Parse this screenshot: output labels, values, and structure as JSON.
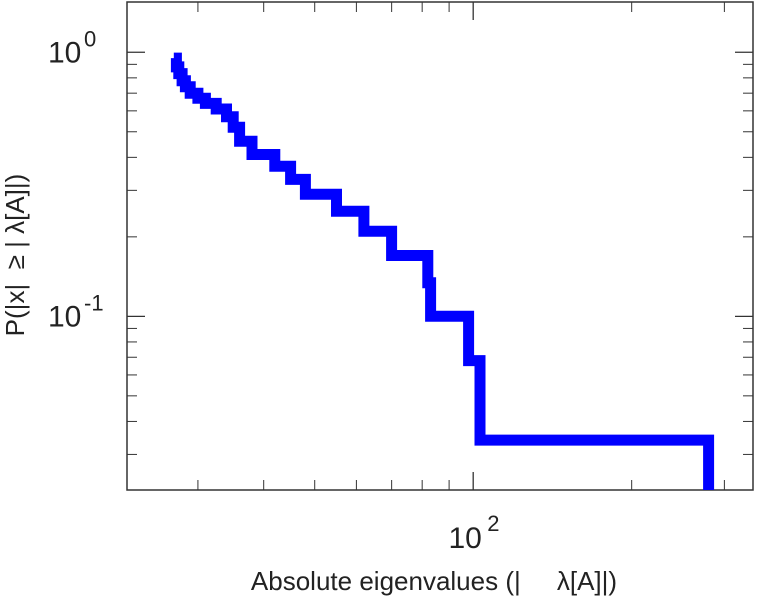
{
  "chart_data": {
    "type": "line",
    "step": true,
    "title": "",
    "xlabel": "Absolute eigenvalues (|     λ[A]|)",
    "ylabel": "P(|x|  ≥ | λ[A]|)",
    "x_scale": "log",
    "y_scale": "log",
    "xlim": [
      22,
      340
    ],
    "ylim": [
      0.022,
      1.55
    ],
    "x_ticks": [
      {
        "value": 100,
        "base": "10",
        "exp": "2"
      }
    ],
    "y_ticks": [
      {
        "value": 1,
        "base": "10",
        "exp": "0"
      },
      {
        "value": 0.1,
        "base": "10",
        "exp": "-1"
      }
    ],
    "grid": false,
    "legend": "none",
    "line_color": "#0000ff",
    "series": [
      {
        "x": [
          27.0,
          27.3,
          27.6,
          28.0,
          28.4,
          29.0,
          30.0,
          31.0,
          32.5,
          34.0,
          35.0,
          36.0,
          38.0,
          42.0,
          45.0,
          48.0,
          55.0,
          62.0,
          70.0,
          82.0,
          83.0,
          98.0,
          103.0,
          280.0
        ],
        "y": [
          0.95,
          0.88,
          0.83,
          0.78,
          0.74,
          0.7,
          0.67,
          0.64,
          0.61,
          0.57,
          0.52,
          0.46,
          0.41,
          0.37,
          0.33,
          0.29,
          0.25,
          0.21,
          0.17,
          0.134,
          0.1,
          0.068,
          0.034,
          0.022
        ]
      }
    ]
  }
}
